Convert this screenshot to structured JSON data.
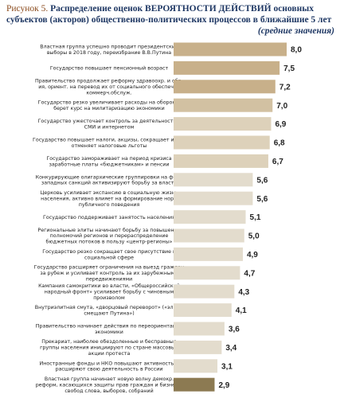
{
  "chart_data": {
    "type": "bar",
    "orientation": "horizontal",
    "figure_label": "Рисунок 5.",
    "title": [
      "Распределение оценок ВЕРОЯТНОСТИ ДЕЙСТВИЙ основных",
      "субъектов (акторов) общественно-политических процессов в ближайшие 5 лет"
    ],
    "subtitle": "(средние значения)",
    "categories": [
      [
        "Властная группа успешно проводит президентские",
        "выборы в 2018 году, переизбрание В.В.Путина"
      ],
      [
        "Государство повышает пенсионный возраст"
      ],
      [
        "Правительство продолжает реформу здравоохр. и обр-",
        "ия, ориент. на перевод их от социального обеспеч. к",
        "коммерч.обслуж."
      ],
      [
        "Государство резко увеличивает расходы на оборону,",
        "берет курс на милитаризацию экономики"
      ],
      [
        "Государство ужесточает контроль за деятельностью",
        "СМИ и интернетом"
      ],
      [
        "Государство повышает налоги, акцизы, сокращает и/или",
        "отменяет налоговые льготы"
      ],
      [
        "Государство замораживает на период кризиса",
        "заработные платы «бюджетникам» и пенсии"
      ],
      [
        "Конкурирующие олигархические группировки на фоне",
        "западных санкций активизируют борьбу за власть"
      ],
      [
        "Церковь усиливает экспансию в социальную жизнь",
        "населения, активно влияет на формирование норм",
        "публичного поведения"
      ],
      [
        "Государство поддерживает занятость населения"
      ],
      [
        "Региональные элиты начинают борьбу за повышение",
        "полномочий регионов и перераспределение",
        "бюджетных потоков в пользу «центр-регионы»"
      ],
      [
        "Государство резко сокращает свое присутствие в",
        "социальной сфере"
      ],
      [
        "Государство расширяет ограничения на выезд граждан",
        "за рубеж и усиливает контроль за их зарубежными",
        "передвижениями"
      ],
      [
        "Кампания самокритики во власти, «Общероссийский",
        "народный фронт» усиливает борьбу с чиновным",
        "произволом"
      ],
      [
        "Внутриэлитная смута, «дворцовый переворот» («элиты",
        "смещают Путина»)"
      ],
      [
        "Правительство начинает действия по переориентации",
        "экономики"
      ],
      [
        "Прекариат, наиболее обездоленные и бесправные",
        "группы населения инициируют по стране массовые",
        "акции протеста"
      ],
      [
        "Иностранные фонды и НКО повышают активность и",
        "расширяют свою деятельность в России"
      ],
      [
        "Властная группа начинает новую волну демокр.",
        "реформ, касающихся защиты прав граждан и бизнеса,",
        "свобод слова, выборов, собраний"
      ]
    ],
    "values": [
      8.0,
      7.5,
      7.2,
      7.0,
      6.9,
      6.8,
      6.7,
      5.6,
      5.6,
      5.1,
      5.0,
      4.9,
      4.7,
      4.3,
      4.1,
      3.6,
      3.4,
      3.1,
      2.9
    ],
    "value_labels": [
      "8,0",
      "7,5",
      "7,2",
      "7,0",
      "6,9",
      "6,8",
      "6,7",
      "5,6",
      "5,6",
      "5,1",
      "5,0",
      "4,9",
      "4,7",
      "4,3",
      "4,1",
      "3,6",
      "3,4",
      "3,1",
      "2,9"
    ],
    "colors": [
      "#c8b08a",
      "#c8b08a",
      "#c8b08a",
      "#d2c1a2",
      "#ddd1ba",
      "#ddd1ba",
      "#ddd1ba",
      "#e3dccd",
      "#e3dccd",
      "#e3dccd",
      "#e3dccd",
      "#e3dccd",
      "#e3dccd",
      "#e3dccd",
      "#e3dccd",
      "#e3dccd",
      "#e3dccd",
      "#e3dccd",
      "#8c7a52"
    ]
  }
}
